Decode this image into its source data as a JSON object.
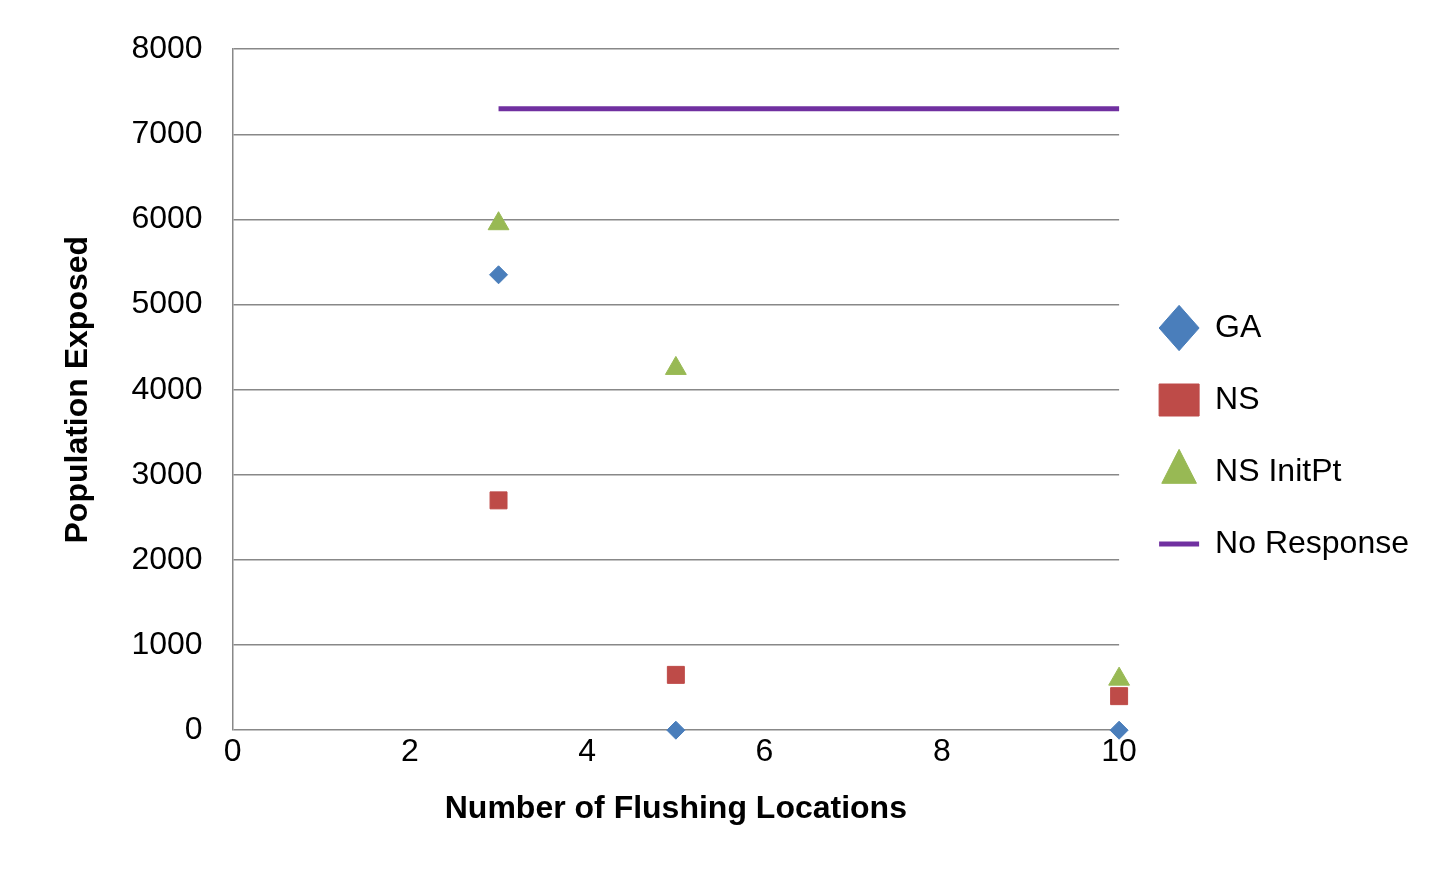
{
  "chart_data": {
    "type": "scatter",
    "xlabel": "Number of Flushing Locations",
    "ylabel": "Population Exposed",
    "xlim": [
      0,
      10
    ],
    "xticks": [
      0,
      2,
      4,
      6,
      8,
      10
    ],
    "ylim": [
      0,
      8000
    ],
    "yticks": [
      0,
      1000,
      2000,
      3000,
      4000,
      5000,
      6000,
      7000,
      8000
    ],
    "grid": "y",
    "legend": "right",
    "series": [
      {
        "name": "GA",
        "color": "#4a7ebb",
        "marker": "diamond",
        "x": [
          3,
          5,
          10
        ],
        "values": [
          5350,
          0,
          0
        ]
      },
      {
        "name": "NS",
        "color": "#be4b48",
        "marker": "square",
        "x": [
          3,
          5,
          10
        ],
        "values": [
          2700,
          650,
          400
        ]
      },
      {
        "name": "NS InitPt",
        "color": "#98b954",
        "marker": "triangle",
        "x": [
          3,
          5,
          10
        ],
        "values": [
          5950,
          4250,
          600
        ]
      },
      {
        "name": "No Response",
        "type": "line",
        "color": "#7030a0",
        "marker": "none",
        "x": [
          3,
          10
        ],
        "values": [
          7300,
          7300
        ]
      }
    ]
  }
}
